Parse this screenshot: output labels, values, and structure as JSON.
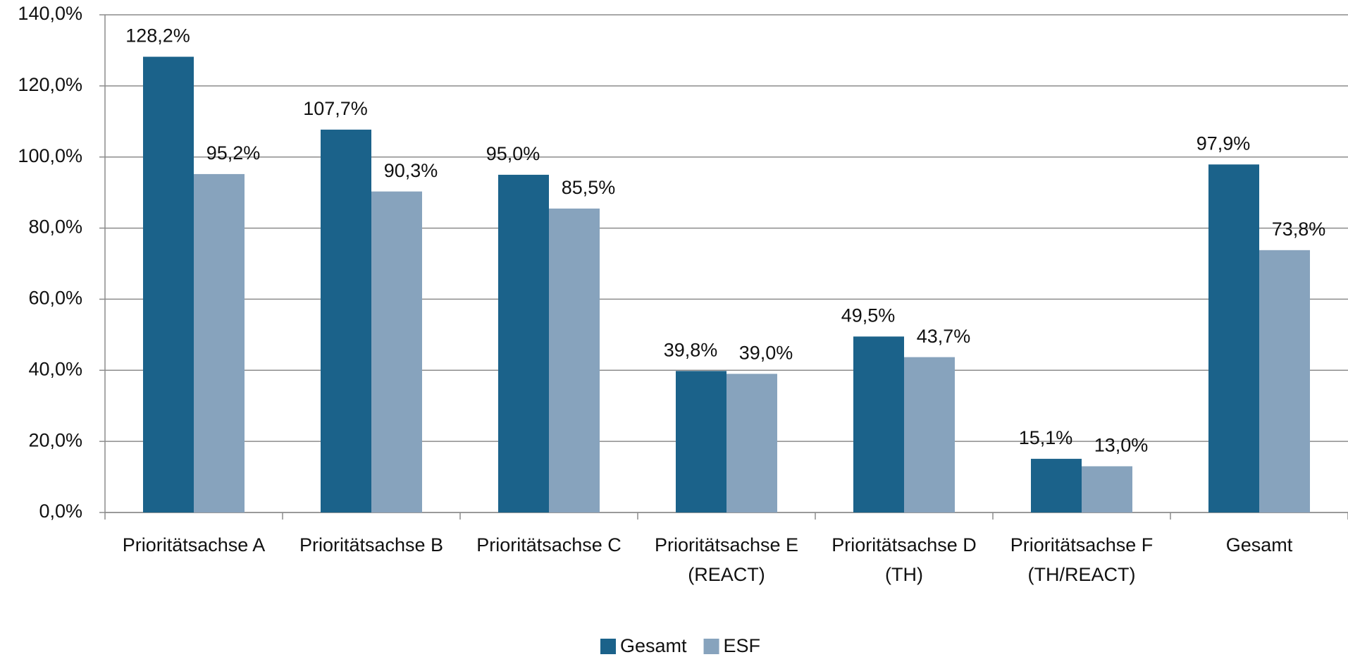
{
  "chart_data": {
    "type": "bar",
    "categories": [
      "Prioritätsachse A",
      "Prioritätsachse B",
      "Prioritätsachse C",
      "Prioritätsachse E (REACT)",
      "Prioritätsachse D (TH)",
      "Prioritätsachse F (TH/REACT)",
      "Gesamt"
    ],
    "series": [
      {
        "name": "Gesamt",
        "color": "#1b628a",
        "values": [
          128.2,
          107.7,
          95.0,
          39.8,
          49.5,
          15.1,
          97.9
        ],
        "value_labels": [
          "128,2%",
          "107,7%",
          "95,0%",
          "39,8%",
          "49,5%",
          "15,1%",
          "97,9%"
        ]
      },
      {
        "name": "ESF",
        "color": "#87a3bd",
        "values": [
          95.2,
          90.3,
          85.5,
          39.0,
          43.7,
          13.0,
          73.8
        ],
        "value_labels": [
          "95,2%",
          "90,3%",
          "85,5%",
          "39,0%",
          "43,7%",
          "13,0%",
          "73,8%"
        ]
      }
    ],
    "ylim": [
      0,
      140
    ],
    "yticks": [
      {
        "value": 0,
        "label": "0,0%"
      },
      {
        "value": 20,
        "label": "20,0%"
      },
      {
        "value": 40,
        "label": "40,0%"
      },
      {
        "value": 60,
        "label": "60,0%"
      },
      {
        "value": 80,
        "label": "80,0%"
      },
      {
        "value": 100,
        "label": "100,0%"
      },
      {
        "value": 120,
        "label": "120,0%"
      },
      {
        "value": 140,
        "label": "140,0%"
      }
    ],
    "grid": true,
    "legend": "bottom"
  }
}
